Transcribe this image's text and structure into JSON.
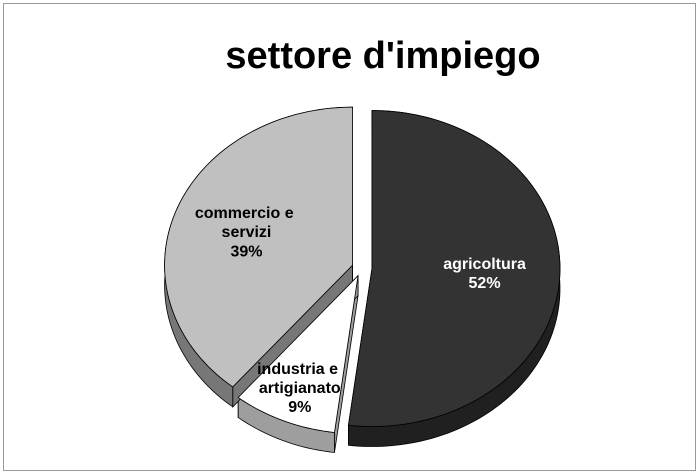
{
  "chart_data": {
    "type": "pie",
    "title": "settore d'impiego",
    "categories": [
      "agricoltura",
      "industria e artigianato",
      "commercio e servizi"
    ],
    "values": [
      52,
      9,
      39
    ],
    "value_labels": [
      "52%",
      "9%",
      "39%"
    ],
    "colors": [
      "#333333",
      "#ffffff",
      "#c0c0c0"
    ]
  }
}
